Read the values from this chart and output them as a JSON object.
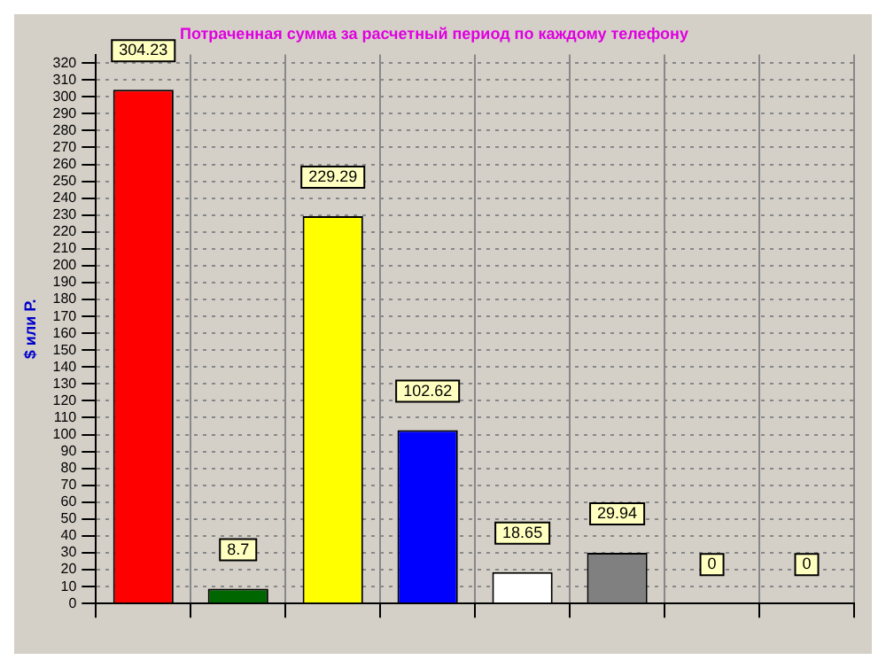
{
  "chart_data": {
    "type": "bar",
    "title": "Потраченная сумма за расчетный период по каждому телефону",
    "ylabel": "$ или Р.",
    "categories": [
      null,
      null,
      null,
      null,
      null,
      null,
      null,
      null
    ],
    "values": [
      304.23,
      8.7,
      229.29,
      102.62,
      18.65,
      29.94,
      0,
      0
    ],
    "colors": [
      "#ff0000",
      "#006600",
      "#ffff00",
      "#0000ff",
      "#ffffff",
      "#808080",
      "#cc00cc",
      "#004d4d"
    ],
    "ylim": [
      0,
      325
    ],
    "yticks": [
      0,
      10,
      20,
      30,
      40,
      50,
      60,
      70,
      80,
      90,
      100,
      110,
      120,
      130,
      140,
      150,
      160,
      170,
      180,
      190,
      200,
      210,
      220,
      230,
      240,
      250,
      260,
      270,
      280,
      290,
      300,
      310,
      320
    ],
    "grid": true,
    "legend": false,
    "data_labels": true
  }
}
